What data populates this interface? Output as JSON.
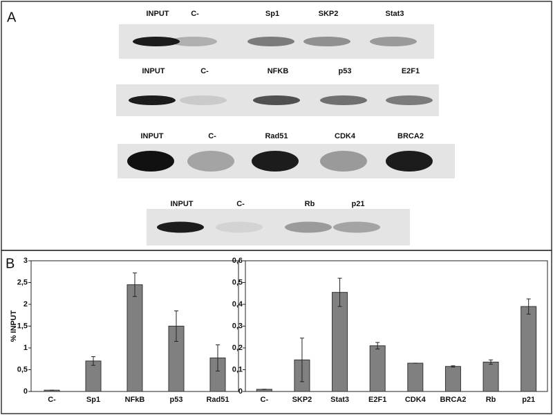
{
  "panel_a": {
    "label": "A",
    "blots": [
      {
        "lanes": [
          "INPUT",
          "C-",
          "Sp1",
          "SKP2",
          "Stat3"
        ]
      },
      {
        "lanes": [
          "INPUT",
          "C-",
          "NFKB",
          "p53",
          "E2F1"
        ]
      },
      {
        "lanes": [
          "INPUT",
          "C-",
          "Rad51",
          "CDK4",
          "BRCA2"
        ]
      },
      {
        "lanes": [
          "INPUT",
          "C-",
          "Rb",
          "p21"
        ]
      }
    ]
  },
  "panel_b": {
    "label": "B"
  },
  "chart_data": [
    {
      "type": "bar",
      "y_label": "% INPUT",
      "color": "#808080",
      "categories": [
        "C-",
        "Sp1",
        "NFkB",
        "p53",
        "Rad51"
      ],
      "values": [
        0.03,
        0.7,
        2.45,
        1.5,
        0.77
      ],
      "errors": [
        0,
        0.1,
        0.27,
        0.35,
        0.3
      ],
      "ylim": [
        0,
        3
      ],
      "yticks": [
        0,
        {
          "value": 0.5,
          "label": "0,5"
        },
        1,
        {
          "value": 1.5,
          "label": "1,5"
        },
        2,
        {
          "value": 2.5,
          "label": "2,5"
        },
        3
      ]
    },
    {
      "type": "bar",
      "color": "#808080",
      "categories": [
        "C-",
        "SKP2",
        "Stat3",
        "E2F1",
        "CDK4",
        "BRCA2",
        "Rb",
        "p21"
      ],
      "values": [
        0.01,
        0.145,
        0.455,
        0.21,
        0.13,
        0.115,
        0.135,
        0.39
      ],
      "errors": [
        0,
        0.1,
        0.065,
        0.015,
        0,
        0.003,
        0.01,
        0.035
      ],
      "ylim": [
        0,
        0.6
      ],
      "yticks": [
        0,
        {
          "value": 0.1,
          "label": "0,1"
        },
        {
          "value": 0.2,
          "label": "0,2"
        },
        {
          "value": 0.3,
          "label": "0,3"
        },
        {
          "value": 0.4,
          "label": "0,4"
        },
        {
          "value": 0.5,
          "label": "0,5"
        },
        {
          "value": 0.6,
          "label": "0,6"
        }
      ]
    }
  ]
}
